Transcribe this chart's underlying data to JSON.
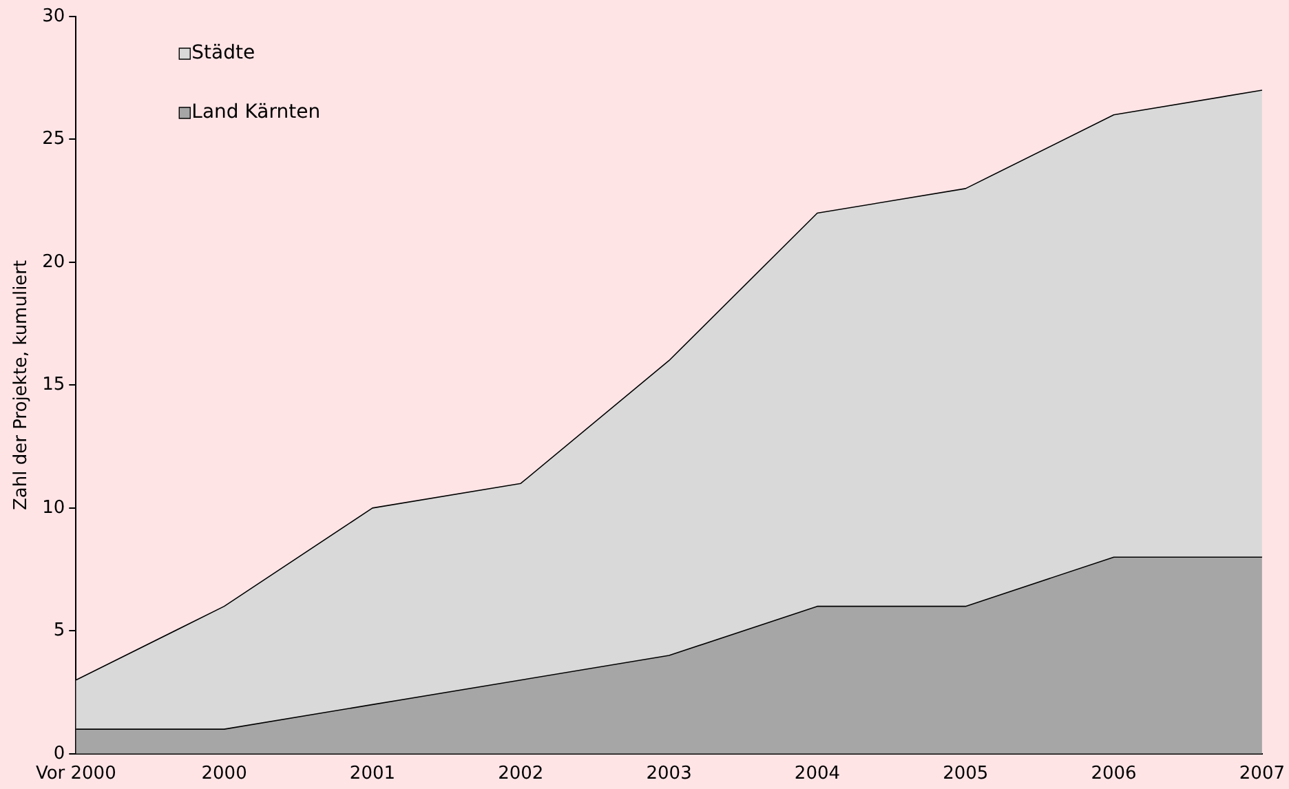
{
  "chart_data": {
    "type": "area",
    "stacked": true,
    "ylabel": "Zahl der Projekte, kumuliert",
    "categories": [
      "Vor 2000",
      "2000",
      "2001",
      "2002",
      "2003",
      "2004",
      "2005",
      "2006",
      "2007"
    ],
    "series": [
      {
        "name": "Land Kärnten",
        "color": "#a6a6a6",
        "values": [
          1,
          1,
          2,
          3,
          4,
          6,
          6,
          8,
          8
        ]
      },
      {
        "name": "Städte",
        "color": "#d9d9d9",
        "values": [
          2,
          5,
          8,
          8,
          12,
          16,
          17,
          18,
          19
        ]
      }
    ],
    "ylim": [
      0,
      30
    ],
    "yticks": [
      0,
      5,
      10,
      15,
      20,
      25,
      30
    ],
    "grid": false,
    "legend": "top left"
  }
}
